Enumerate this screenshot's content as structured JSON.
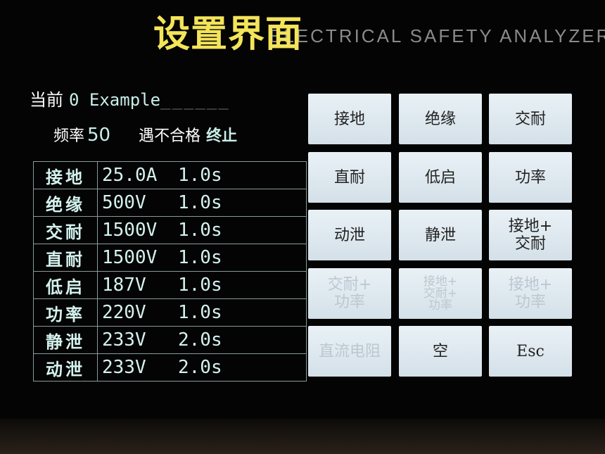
{
  "header": {
    "title": "设置界面",
    "subtitle": "ELECTRICAL SAFETY ANALYZER"
  },
  "current": {
    "label": "当前",
    "value": "0 Example",
    "placeholder": "______"
  },
  "settings": {
    "freq_label": "频率",
    "freq_value": "50",
    "fail_label": "遇不合格",
    "fail_action": "终止"
  },
  "tests": [
    {
      "name": "接地",
      "value": "25.0A",
      "time": "1.0s"
    },
    {
      "name": "绝缘",
      "value": "500V",
      "time": "1.0s"
    },
    {
      "name": "交耐",
      "value": "1500V",
      "time": "1.0s"
    },
    {
      "name": "直耐",
      "value": "1500V",
      "time": "1.0s"
    },
    {
      "name": "低启",
      "value": "187V",
      "time": "1.0s"
    },
    {
      "name": "功率",
      "value": "220V",
      "time": "1.0s"
    },
    {
      "name": "静泄",
      "value": "233V",
      "time": "2.0s"
    },
    {
      "name": "动泄",
      "value": "233V",
      "time": "2.0s"
    }
  ],
  "buttons": [
    {
      "label": "接地",
      "enabled": true
    },
    {
      "label": "绝缘",
      "enabled": true
    },
    {
      "label": "交耐",
      "enabled": true
    },
    {
      "label": "直耐",
      "enabled": true
    },
    {
      "label": "低启",
      "enabled": true
    },
    {
      "label": "功率",
      "enabled": true
    },
    {
      "label": "动泄",
      "enabled": true
    },
    {
      "label": "静泄",
      "enabled": true
    },
    {
      "label": "接地+\n交耐",
      "enabled": true
    },
    {
      "label": "交耐+\n功率",
      "enabled": false
    },
    {
      "label": "接地+\n交耐+\n功率",
      "enabled": false
    },
    {
      "label": "接地+\n功率",
      "enabled": false
    },
    {
      "label": "直流电阻",
      "enabled": false
    },
    {
      "label": "空",
      "enabled": true
    },
    {
      "label": "Esc",
      "enabled": true
    }
  ],
  "colors": {
    "title": "#f3e45a",
    "value_text": "#c9efe9",
    "button_bg": "#dde8ef",
    "disabled_text": "#bcc7cf"
  }
}
